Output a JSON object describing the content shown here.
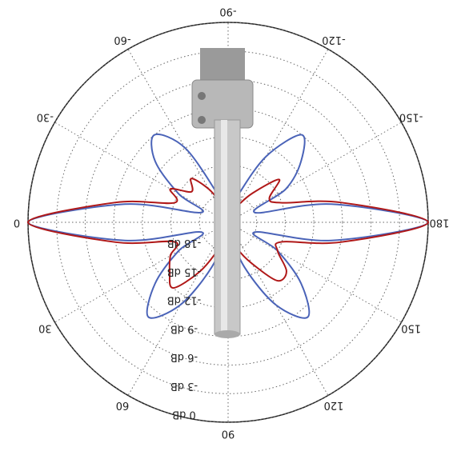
{
  "chart_data": {
    "type": "polar",
    "theta": [
      -180,
      -170,
      -160,
      -150,
      -140,
      -130,
      -120,
      -110,
      -100,
      -90,
      -80,
      -70,
      -60,
      -50,
      -40,
      -30,
      -20,
      -10,
      0,
      10,
      20,
      30,
      40,
      50,
      60,
      70,
      80,
      90,
      100,
      110,
      120,
      130,
      140,
      150,
      160,
      170
    ],
    "series": [
      {
        "color": "#4a63b8",
        "values": [
          0,
          -10,
          -18,
          -14,
          -11,
          -9,
          -13,
          -18,
          -20,
          -21,
          -20,
          -18,
          -12,
          -9,
          -11,
          -15,
          -18,
          -10,
          0,
          -10,
          -18,
          -15,
          -11,
          -8,
          -11,
          -16,
          -20,
          -21,
          -20,
          -16,
          -11,
          -8,
          -11,
          -15,
          -18,
          -10
        ]
      },
      {
        "color": "#b01818",
        "values": [
          0,
          -9,
          -15,
          -16,
          -14,
          -17,
          -19,
          -20,
          -21,
          -21,
          -20,
          -19,
          -17,
          -15,
          -16,
          -14,
          -15,
          -9,
          0,
          -9,
          -15,
          -14,
          -13,
          -12,
          -15,
          -18,
          -20,
          -21,
          -20,
          -18,
          -16,
          -13,
          -13,
          -15,
          -15,
          -9
        ]
      }
    ],
    "rlim": [
      -21,
      0
    ],
    "rticks": [
      {
        "value": 0,
        "label": "0 dB"
      },
      {
        "value": -3,
        "label": "-3 dB"
      },
      {
        "value": -6,
        "label": "-6 dB"
      },
      {
        "value": -9,
        "label": "-9 dB"
      },
      {
        "value": -12,
        "label": "-12 dB"
      },
      {
        "value": -15,
        "label": "-15 dB"
      },
      {
        "value": -18,
        "label": "-18 dB"
      }
    ],
    "thetaticks": [
      0,
      30,
      60,
      90,
      120,
      150,
      180,
      -150,
      -120,
      -90,
      -60,
      -30
    ]
  }
}
